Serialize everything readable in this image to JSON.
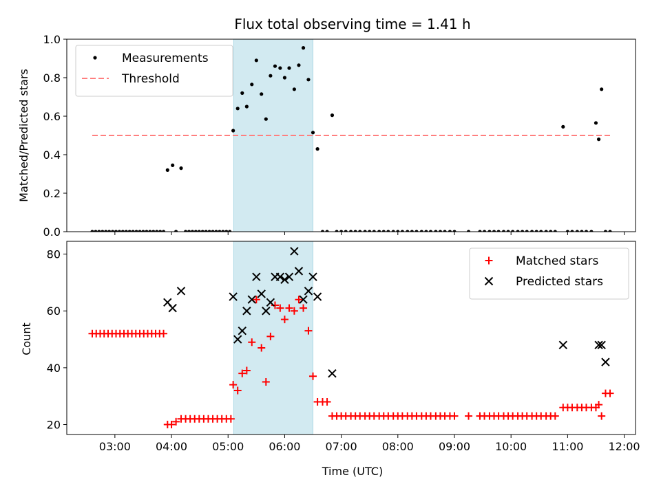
{
  "chart_data": [
    {
      "type": "scatter",
      "title": "Flux total observing time = 1.41 h",
      "xlabel": "",
      "ylabel": "Matched/Predicted stars",
      "ylim": [
        0,
        1.0
      ],
      "yticks": [
        "0.0",
        "0.2",
        "0.4",
        "0.6",
        "0.8",
        "1.0"
      ],
      "xlim": [
        2.15,
        12.2
      ],
      "xticks": [
        3,
        4,
        5,
        6,
        7,
        8,
        9,
        10,
        11,
        12
      ],
      "shaded_region": [
        5.1,
        6.5
      ],
      "shade_color": "#add8e6",
      "threshold": 0.5,
      "threshold_line_range": [
        2.6,
        11.75
      ],
      "legend_position": "upper-left",
      "legend": [
        "Measurements",
        "Threshold"
      ],
      "series": [
        {
          "name": "Measurements",
          "marker": "dot",
          "color": "#000000",
          "x": [
            2.6,
            2.66,
            2.72,
            2.78,
            2.84,
            2.9,
            2.96,
            3.02,
            3.08,
            3.14,
            3.2,
            3.26,
            3.32,
            3.38,
            3.44,
            3.5,
            3.56,
            3.62,
            3.68,
            3.74,
            3.8,
            3.86,
            3.93,
            4.02,
            4.08,
            4.17,
            4.25,
            4.31,
            4.37,
            4.43,
            4.49,
            4.55,
            4.61,
            4.67,
            4.73,
            4.79,
            4.85,
            4.91,
            4.97,
            5.03,
            5.09,
            5.17,
            5.25,
            5.33,
            5.42,
            5.5,
            5.59,
            5.67,
            5.75,
            5.83,
            5.92,
            6.0,
            6.08,
            6.17,
            6.25,
            6.33,
            6.42,
            6.5,
            6.58,
            6.67,
            6.75,
            6.84,
            6.92,
            7.0,
            7.08,
            7.17,
            7.25,
            7.33,
            7.42,
            7.5,
            7.58,
            7.67,
            7.75,
            7.83,
            7.92,
            8.0,
            8.08,
            8.17,
            8.25,
            8.33,
            8.42,
            8.5,
            8.58,
            8.67,
            8.75,
            8.83,
            8.92,
            9.0,
            9.25,
            9.45,
            9.53,
            9.62,
            9.7,
            9.78,
            9.87,
            9.95,
            10.03,
            10.12,
            10.2,
            10.28,
            10.37,
            10.45,
            10.53,
            10.62,
            10.7,
            10.78,
            10.92,
            11.0,
            11.08,
            11.17,
            11.25,
            11.33,
            11.42,
            11.5,
            11.55,
            11.6,
            11.67,
            11.75
          ],
          "y": [
            0,
            0,
            0,
            0,
            0,
            0,
            0,
            0,
            0,
            0,
            0,
            0,
            0,
            0,
            0,
            0,
            0,
            0,
            0,
            0,
            0,
            0,
            0.32,
            0.345,
            0,
            0.33,
            0,
            0,
            0,
            0,
            0,
            0,
            0,
            0,
            0,
            0,
            0,
            0,
            0,
            0,
            0.525,
            0.64,
            0.72,
            0.65,
            0.765,
            0.89,
            0.715,
            0.585,
            0.81,
            0.86,
            0.85,
            0.8,
            0.85,
            0.74,
            0.865,
            0.955,
            0.79,
            0.515,
            0.43,
            0,
            0,
            0.605,
            0,
            0,
            0,
            0,
            0,
            0,
            0,
            0,
            0,
            0,
            0,
            0,
            0,
            0,
            0,
            0,
            0,
            0,
            0,
            0,
            0,
            0,
            0,
            0,
            0,
            0,
            0,
            0,
            0,
            0,
            0,
            0,
            0,
            0,
            0,
            0,
            0,
            0,
            0,
            0,
            0,
            0,
            0,
            0,
            0.545,
            0,
            0,
            0,
            0,
            0,
            0,
            0.565,
            0.48,
            0.74,
            0,
            0
          ]
        }
      ]
    },
    {
      "type": "scatter",
      "title": "",
      "xlabel": "Time (UTC)",
      "ylabel": "Count",
      "ylim": [
        16.5,
        84.5
      ],
      "yticks": [
        "20",
        "40",
        "60",
        "80"
      ],
      "xlim": [
        2.15,
        12.2
      ],
      "xticks": [
        3,
        4,
        5,
        6,
        7,
        8,
        9,
        10,
        11,
        12
      ],
      "xtick_labels": [
        "03:00",
        "04:00",
        "05:00",
        "06:00",
        "07:00",
        "08:00",
        "09:00",
        "10:00",
        "11:00",
        "12:00"
      ],
      "shaded_region": [
        5.1,
        6.5
      ],
      "shade_color": "#add8e6",
      "legend_position": "upper-right",
      "legend": [
        "Matched stars",
        "Predicted stars"
      ],
      "series": [
        {
          "name": "Matched stars",
          "marker": "plus",
          "color": "#ff0000",
          "x": [
            2.6,
            2.67,
            2.74,
            2.81,
            2.88,
            2.95,
            3.02,
            3.09,
            3.16,
            3.23,
            3.3,
            3.37,
            3.44,
            3.51,
            3.58,
            3.65,
            3.72,
            3.79,
            3.86,
            3.93,
            4.0,
            4.08,
            4.17,
            4.25,
            4.33,
            4.41,
            4.49,
            4.57,
            4.65,
            4.73,
            4.81,
            4.89,
            4.97,
            5.05,
            5.09,
            5.17,
            5.25,
            5.33,
            5.42,
            5.5,
            5.59,
            5.67,
            5.75,
            5.83,
            5.92,
            6.0,
            6.08,
            6.17,
            6.25,
            6.33,
            6.42,
            6.5,
            6.58,
            6.67,
            6.75,
            6.84,
            6.92,
            7.0,
            7.08,
            7.17,
            7.25,
            7.33,
            7.42,
            7.5,
            7.58,
            7.67,
            7.75,
            7.83,
            7.92,
            8.0,
            8.08,
            8.17,
            8.25,
            8.33,
            8.42,
            8.5,
            8.58,
            8.67,
            8.75,
            8.83,
            8.92,
            9.0,
            9.25,
            9.45,
            9.53,
            9.62,
            9.7,
            9.78,
            9.87,
            9.95,
            10.03,
            10.12,
            10.2,
            10.28,
            10.37,
            10.45,
            10.53,
            10.62,
            10.7,
            10.78,
            10.92,
            11.0,
            11.08,
            11.17,
            11.25,
            11.33,
            11.42,
            11.5,
            11.55,
            11.6,
            11.67,
            11.75
          ],
          "y": [
            52,
            52,
            52,
            52,
            52,
            52,
            52,
            52,
            52,
            52,
            52,
            52,
            52,
            52,
            52,
            52,
            52,
            52,
            52,
            20,
            20,
            21,
            22,
            22,
            22,
            22,
            22,
            22,
            22,
            22,
            22,
            22,
            22,
            22,
            34,
            32,
            38,
            39,
            49,
            64,
            47,
            35,
            51,
            62,
            61,
            57,
            61,
            60,
            64,
            61,
            53,
            37,
            28,
            28,
            28,
            23,
            23,
            23,
            23,
            23,
            23,
            23,
            23,
            23,
            23,
            23,
            23,
            23,
            23,
            23,
            23,
            23,
            23,
            23,
            23,
            23,
            23,
            23,
            23,
            23,
            23,
            23,
            23,
            23,
            23,
            23,
            23,
            23,
            23,
            23,
            23,
            23,
            23,
            23,
            23,
            23,
            23,
            23,
            23,
            23,
            26,
            26,
            26,
            26,
            26,
            26,
            26,
            26,
            27,
            23,
            31,
            31
          ]
        },
        {
          "name": "Predicted stars",
          "marker": "x",
          "color": "#000000",
          "x": [
            3.93,
            4.02,
            4.17,
            5.09,
            5.17,
            5.25,
            5.33,
            5.42,
            5.5,
            5.59,
            5.67,
            5.75,
            5.83,
            5.92,
            6.0,
            6.08,
            6.17,
            6.25,
            6.33,
            6.42,
            6.5,
            6.58,
            6.84,
            10.92,
            11.55,
            11.6,
            11.67
          ],
          "y": [
            63,
            61,
            67,
            65,
            50,
            53,
            60,
            64,
            72,
            66,
            60,
            63,
            72,
            72,
            71,
            72,
            81,
            74,
            64,
            67,
            72,
            65,
            38,
            48,
            48,
            48,
            42
          ]
        }
      ]
    }
  ]
}
